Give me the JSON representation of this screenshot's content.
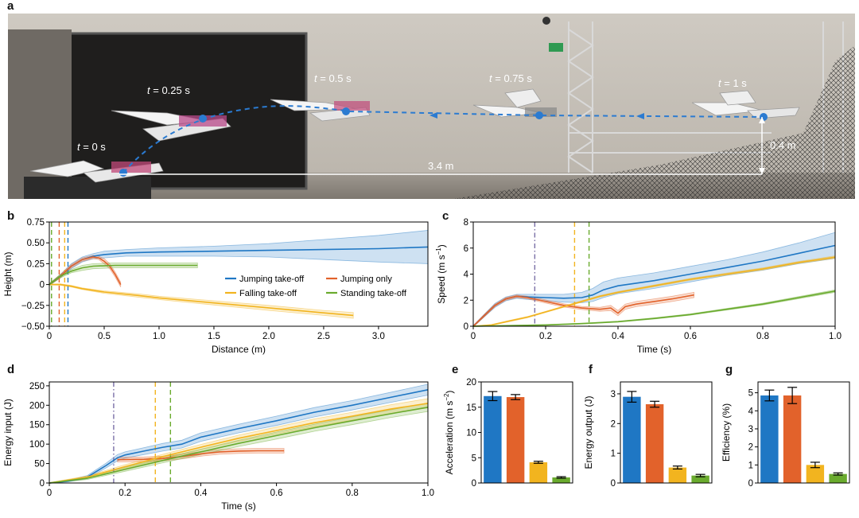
{
  "figure": {
    "panels": [
      "a",
      "b",
      "c",
      "d",
      "e",
      "f",
      "g"
    ]
  },
  "photo": {
    "time_labels": [
      {
        "var": "t",
        "val": " = 0 s"
      },
      {
        "var": "t",
        "val": " = 0.25 s"
      },
      {
        "var": "t",
        "val": " = 0.5 s"
      },
      {
        "var": "t",
        "val": " = 0.75 s"
      },
      {
        "var": "t",
        "val": " = 1 s"
      }
    ],
    "distance_label": "3.4 m",
    "height_label": "0.4 m"
  },
  "colors": {
    "jumping_takeoff": "#1f77c4",
    "jumping_only": "#e2622b",
    "falling_takeoff": "#f2b41f",
    "standing_takeoff": "#6aab2e"
  },
  "chart_data": [
    {
      "panel": "b",
      "type": "line",
      "xlabel": "Distance (m)",
      "ylabel": "Height (m)",
      "xlim": [
        0,
        3.45
      ],
      "ylim": [
        -0.5,
        0.75
      ],
      "xticks": [
        0,
        0.5,
        1.0,
        1.5,
        2.0,
        2.5,
        3.0
      ],
      "xtick_labels": [
        "0",
        "0.5",
        "1.0",
        "1.5",
        "2.0",
        "2.5",
        "3.0"
      ],
      "yticks": [
        -0.5,
        -0.25,
        0,
        0.25,
        0.5,
        0.75
      ],
      "ytick_labels": [
        "−0.50",
        "−0.25",
        "0",
        "0.25",
        "0.50",
        "0.75"
      ],
      "vlines": [
        {
          "x": 0.02,
          "color": "#6aab2e"
        },
        {
          "x": 0.09,
          "color": "#e2622b"
        },
        {
          "x": 0.14,
          "color": "#f2b41f"
        },
        {
          "x": 0.17,
          "color": "#1f77c4"
        }
      ],
      "legend": [
        "Jumping take-off",
        "Jumping only",
        "Falling take-off",
        "Standing take-off"
      ],
      "series": [
        {
          "name": "Jumping take-off",
          "color": "#1f77c4",
          "x": [
            0,
            0.1,
            0.2,
            0.3,
            0.4,
            0.5,
            0.7,
            1.0,
            1.5,
            2.0,
            2.5,
            3.0,
            3.45
          ],
          "y": [
            0,
            0.1,
            0.22,
            0.3,
            0.34,
            0.36,
            0.38,
            0.39,
            0.4,
            0.41,
            0.42,
            0.43,
            0.45
          ],
          "band": [
            0.01,
            0.02,
            0.03,
            0.03,
            0.03,
            0.04,
            0.04,
            0.05,
            0.06,
            0.08,
            0.12,
            0.16,
            0.2
          ]
        },
        {
          "name": "Jumping only",
          "color": "#e2622b",
          "x": [
            0,
            0.1,
            0.2,
            0.3,
            0.4,
            0.45,
            0.5,
            0.55,
            0.6,
            0.65
          ],
          "y": [
            0,
            0.1,
            0.22,
            0.3,
            0.33,
            0.32,
            0.28,
            0.22,
            0.12,
            0.0
          ],
          "band": [
            0.01,
            0.02,
            0.02,
            0.02,
            0.02,
            0.02,
            0.03,
            0.03,
            0.03,
            0.03
          ]
        },
        {
          "name": "Falling take-off",
          "color": "#f2b41f",
          "x": [
            0,
            0.1,
            0.2,
            0.3,
            0.5,
            0.8,
            1.0,
            1.5,
            2.0,
            2.5,
            2.77
          ],
          "y": [
            0,
            0.0,
            -0.02,
            -0.05,
            -0.09,
            -0.13,
            -0.16,
            -0.22,
            -0.28,
            -0.34,
            -0.37
          ],
          "band": [
            0.005,
            0.01,
            0.01,
            0.01,
            0.015,
            0.02,
            0.02,
            0.025,
            0.03,
            0.03,
            0.035
          ]
        },
        {
          "name": "Standing take-off",
          "color": "#6aab2e",
          "x": [
            0,
            0.1,
            0.2,
            0.3,
            0.4,
            0.6,
            0.8,
            1.0,
            1.35
          ],
          "y": [
            0,
            0.1,
            0.16,
            0.2,
            0.22,
            0.23,
            0.23,
            0.23,
            0.23
          ],
          "band": [
            0.01,
            0.02,
            0.02,
            0.03,
            0.03,
            0.03,
            0.03,
            0.03,
            0.03
          ]
        }
      ]
    },
    {
      "panel": "c",
      "type": "line",
      "xlabel": "Time (s)",
      "ylabel": "Speed (m s",
      "ylabel_sup": "−1",
      "ylabel_end": ")",
      "xlim": [
        0,
        1.0
      ],
      "ylim": [
        0,
        8
      ],
      "xticks": [
        0,
        0.2,
        0.4,
        0.6,
        0.8,
        1.0
      ],
      "xtick_labels": [
        "0",
        "0.2",
        "0.4",
        "0.6",
        "0.8",
        "1.0"
      ],
      "yticks": [
        0,
        2,
        4,
        6,
        8
      ],
      "ytick_labels": [
        "0",
        "2",
        "4",
        "6",
        "8"
      ],
      "vlines": [
        {
          "x": 0.17,
          "color": "#7a6fa6",
          "style": "dashdot"
        },
        {
          "x": 0.28,
          "color": "#f2b41f"
        },
        {
          "x": 0.32,
          "color": "#6aab2e"
        }
      ],
      "series": [
        {
          "name": "Jumping take-off",
          "color": "#1f77c4",
          "x": [
            0,
            0.03,
            0.06,
            0.09,
            0.12,
            0.15,
            0.2,
            0.25,
            0.3,
            0.33,
            0.36,
            0.4,
            0.5,
            0.6,
            0.7,
            0.8,
            0.9,
            1.0
          ],
          "y": [
            0,
            0.8,
            1.6,
            2.1,
            2.3,
            2.25,
            2.2,
            2.15,
            2.2,
            2.4,
            2.8,
            3.1,
            3.5,
            4.0,
            4.5,
            5.0,
            5.6,
            6.2
          ],
          "band": [
            0.05,
            0.1,
            0.15,
            0.15,
            0.15,
            0.2,
            0.25,
            0.3,
            0.4,
            0.5,
            0.6,
            0.6,
            0.6,
            0.6,
            0.6,
            0.7,
            0.8,
            1.0
          ]
        },
        {
          "name": "Jumping only",
          "color": "#e2622b",
          "x": [
            0,
            0.03,
            0.06,
            0.09,
            0.12,
            0.15,
            0.2,
            0.25,
            0.3,
            0.35,
            0.38,
            0.4,
            0.42,
            0.45,
            0.5,
            0.55,
            0.61
          ],
          "y": [
            0,
            0.8,
            1.6,
            2.1,
            2.3,
            2.2,
            1.9,
            1.6,
            1.4,
            1.3,
            1.4,
            1.0,
            1.5,
            1.7,
            1.9,
            2.1,
            2.4
          ],
          "band": [
            0.05,
            0.1,
            0.1,
            0.1,
            0.1,
            0.1,
            0.12,
            0.12,
            0.12,
            0.15,
            0.2,
            0.2,
            0.2,
            0.2,
            0.2,
            0.2,
            0.2
          ]
        },
        {
          "name": "Falling take-off",
          "color": "#f2b41f",
          "x": [
            0,
            0.05,
            0.1,
            0.15,
            0.2,
            0.25,
            0.3,
            0.35,
            0.4,
            0.5,
            0.6,
            0.7,
            0.8,
            0.9,
            1.0
          ],
          "y": [
            0,
            0.1,
            0.4,
            0.7,
            1.1,
            1.5,
            1.9,
            2.3,
            2.6,
            3.1,
            3.6,
            4.0,
            4.4,
            4.9,
            5.3
          ],
          "band": [
            0.02,
            0.03,
            0.05,
            0.05,
            0.05,
            0.05,
            0.06,
            0.06,
            0.06,
            0.07,
            0.07,
            0.08,
            0.08,
            0.08,
            0.1
          ]
        },
        {
          "name": "Standing take-off",
          "color": "#6aab2e",
          "x": [
            0,
            0.1,
            0.2,
            0.3,
            0.4,
            0.5,
            0.6,
            0.7,
            0.8,
            0.9,
            1.0
          ],
          "y": [
            0,
            0.05,
            0.1,
            0.2,
            0.35,
            0.6,
            0.9,
            1.3,
            1.7,
            2.2,
            2.7
          ],
          "band": [
            0.02,
            0.02,
            0.03,
            0.03,
            0.04,
            0.05,
            0.05,
            0.06,
            0.07,
            0.08,
            0.1
          ]
        }
      ]
    },
    {
      "panel": "d",
      "type": "line",
      "xlabel": "Time (s)",
      "ylabel": "Energy input (J)",
      "xlim": [
        0,
        1.0
      ],
      "ylim": [
        0,
        260
      ],
      "xticks": [
        0,
        0.2,
        0.4,
        0.6,
        0.8,
        1.0
      ],
      "xtick_labels": [
        "0",
        "0.2",
        "0.4",
        "0.6",
        "0.8",
        "1.0"
      ],
      "yticks": [
        0,
        50,
        100,
        150,
        200,
        250
      ],
      "ytick_labels": [
        "0",
        "50",
        "100",
        "150",
        "200",
        "250"
      ],
      "vlines": [
        {
          "x": 0.17,
          "color": "#7a6fa6",
          "style": "dashdot"
        },
        {
          "x": 0.28,
          "color": "#f2b41f"
        },
        {
          "x": 0.32,
          "color": "#6aab2e"
        }
      ],
      "series": [
        {
          "name": "Jumping take-off",
          "color": "#1f77c4",
          "x": [
            0,
            0.05,
            0.1,
            0.15,
            0.18,
            0.2,
            0.25,
            0.3,
            0.35,
            0.4,
            0.5,
            0.6,
            0.7,
            0.8,
            0.9,
            1.0
          ],
          "y": [
            0,
            5,
            15,
            45,
            65,
            72,
            82,
            92,
            100,
            118,
            140,
            160,
            182,
            200,
            220,
            240
          ],
          "band": [
            1,
            2,
            4,
            6,
            8,
            8,
            9,
            10,
            10,
            11,
            11,
            12,
            12,
            12,
            13,
            14
          ]
        },
        {
          "name": "Jumping only",
          "color": "#e2622b",
          "x": [
            0.18,
            0.25,
            0.3,
            0.35,
            0.4,
            0.45,
            0.5,
            0.55,
            0.62
          ],
          "y": [
            60,
            61,
            63,
            68,
            75,
            80,
            82,
            83,
            83
          ],
          "band": [
            6,
            6,
            6,
            6,
            6,
            6,
            6,
            6,
            6
          ]
        },
        {
          "name": "Falling take-off",
          "color": "#f2b41f",
          "x": [
            0,
            0.1,
            0.2,
            0.3,
            0.4,
            0.5,
            0.6,
            0.7,
            0.8,
            0.9,
            1.0
          ],
          "y": [
            0,
            15,
            42,
            68,
            92,
            115,
            135,
            155,
            172,
            190,
            205
          ],
          "band": [
            1,
            3,
            5,
            6,
            7,
            8,
            9,
            10,
            10,
            11,
            12
          ]
        },
        {
          "name": "Standing take-off",
          "color": "#6aab2e",
          "x": [
            0,
            0.1,
            0.2,
            0.3,
            0.4,
            0.5,
            0.6,
            0.7,
            0.8,
            0.9,
            1.0
          ],
          "y": [
            0,
            12,
            35,
            58,
            80,
            102,
            122,
            142,
            160,
            178,
            195
          ],
          "band": [
            1,
            3,
            5,
            6,
            7,
            8,
            9,
            9,
            10,
            10,
            11
          ]
        }
      ]
    },
    {
      "panel": "e",
      "type": "bar",
      "ylabel": "Acceleration (m s",
      "ylabel_sup": "−2",
      "ylabel_end": ")",
      "ylim": [
        0,
        20
      ],
      "yticks": [
        0,
        5,
        10,
        15,
        20
      ],
      "ytick_labels": [
        "0",
        "5",
        "10",
        "15",
        "20"
      ],
      "values": [
        17.2,
        17.0,
        4.1,
        1.1
      ],
      "errors": [
        0.9,
        0.5,
        0.2,
        0.15
      ],
      "colors": [
        "#1f77c4",
        "#e2622b",
        "#f2b41f",
        "#6aab2e"
      ]
    },
    {
      "panel": "f",
      "type": "bar",
      "ylabel": "Energy output (J)",
      "ylim": [
        0,
        3.4
      ],
      "yticks": [
        0,
        1,
        2,
        3
      ],
      "ytick_labels": [
        "0",
        "1",
        "2",
        "3"
      ],
      "values": [
        2.9,
        2.65,
        0.52,
        0.25
      ],
      "errors": [
        0.18,
        0.1,
        0.05,
        0.04
      ],
      "colors": [
        "#1f77c4",
        "#e2622b",
        "#f2b41f",
        "#6aab2e"
      ]
    },
    {
      "panel": "g",
      "type": "bar",
      "ylabel": "Efficiency (%)",
      "ylim": [
        0,
        5.6
      ],
      "yticks": [
        0,
        1,
        2,
        3,
        4,
        5
      ],
      "ytick_labels": [
        "0",
        "1",
        "2",
        "3",
        "4",
        "5"
      ],
      "values": [
        4.85,
        4.85,
        1.0,
        0.5
      ],
      "errors": [
        0.3,
        0.45,
        0.15,
        0.06
      ],
      "colors": [
        "#1f77c4",
        "#e2622b",
        "#f2b41f",
        "#6aab2e"
      ]
    }
  ]
}
